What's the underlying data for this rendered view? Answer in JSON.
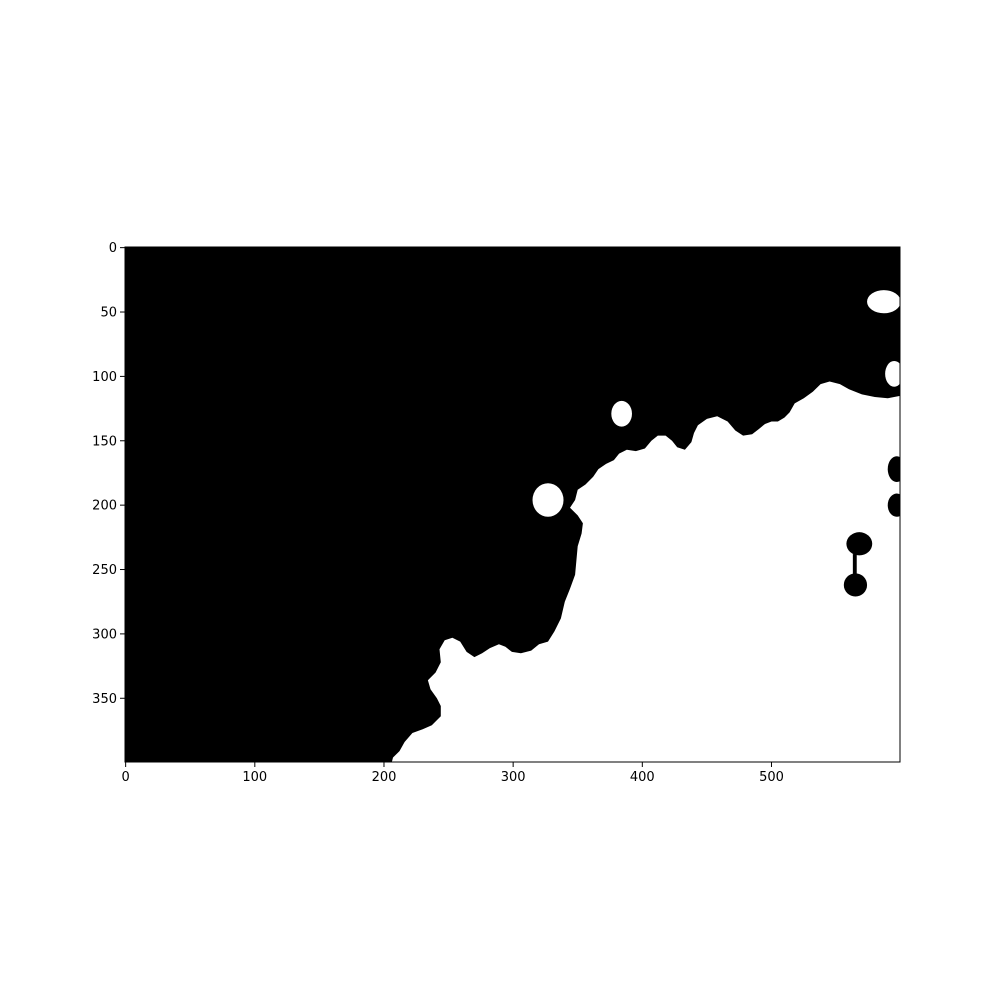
{
  "chart_data": {
    "type": "heatmap",
    "title": "",
    "xlabel": "",
    "ylabel": "",
    "image_width": 600,
    "image_height": 400,
    "xlim": [
      -0.5,
      599.5
    ],
    "ylim": [
      399.5,
      -0.5
    ],
    "y_axis_inverted": true,
    "colormap": "gray",
    "values": [
      0,
      1
    ],
    "colors": {
      "0": "#000000",
      "1": "#ffffff"
    },
    "grid": false,
    "legend": "none",
    "xticks": [
      0,
      100,
      200,
      300,
      400,
      500
    ],
    "xtick_labels": [
      "0",
      "100",
      "200",
      "300",
      "400",
      "500"
    ],
    "yticks": [
      0,
      50,
      100,
      150,
      200,
      250,
      300,
      350
    ],
    "ytick_labels": [
      "0",
      "50",
      "100",
      "150",
      "200",
      "250",
      "300",
      "350"
    ],
    "white_region_boundary": [
      [
        600,
        115
      ],
      [
        590,
        117
      ],
      [
        580,
        116
      ],
      [
        570,
        114
      ],
      [
        560,
        110
      ],
      [
        553,
        106
      ],
      [
        545,
        104
      ],
      [
        538,
        106
      ],
      [
        532,
        112
      ],
      [
        525,
        117
      ],
      [
        518,
        121
      ],
      [
        514,
        128
      ],
      [
        510,
        132
      ],
      [
        505,
        135
      ],
      [
        500,
        135
      ],
      [
        495,
        137
      ],
      [
        490,
        141
      ],
      [
        485,
        145
      ],
      [
        478,
        146
      ],
      [
        472,
        142
      ],
      [
        466,
        135
      ],
      [
        458,
        131
      ],
      [
        450,
        133
      ],
      [
        443,
        138
      ],
      [
        440,
        144
      ],
      [
        438,
        151
      ],
      [
        433,
        157
      ],
      [
        427,
        155
      ],
      [
        423,
        150
      ],
      [
        418,
        146
      ],
      [
        412,
        146
      ],
      [
        407,
        150
      ],
      [
        402,
        156
      ],
      [
        395,
        158
      ],
      [
        388,
        157
      ],
      [
        382,
        160
      ],
      [
        378,
        165
      ],
      [
        372,
        168
      ],
      [
        366,
        172
      ],
      [
        362,
        178
      ],
      [
        356,
        184
      ],
      [
        350,
        188
      ],
      [
        348,
        196
      ],
      [
        344,
        202
      ],
      [
        350,
        208
      ],
      [
        354,
        214
      ],
      [
        353,
        222
      ],
      [
        350,
        232
      ],
      [
        349,
        243
      ],
      [
        348,
        254
      ],
      [
        344,
        265
      ],
      [
        340,
        275
      ],
      [
        337,
        288
      ],
      [
        332,
        298
      ],
      [
        327,
        306
      ],
      [
        320,
        308
      ],
      [
        314,
        313
      ],
      [
        306,
        315
      ],
      [
        299,
        314
      ],
      [
        294,
        310
      ],
      [
        289,
        308
      ],
      [
        282,
        311
      ],
      [
        276,
        315
      ],
      [
        270,
        318
      ],
      [
        264,
        314
      ],
      [
        259,
        306
      ],
      [
        253,
        303
      ],
      [
        247,
        305
      ],
      [
        243,
        312
      ],
      [
        244,
        322
      ],
      [
        240,
        330
      ],
      [
        234,
        336
      ],
      [
        236,
        343
      ],
      [
        241,
        350
      ],
      [
        244,
        356
      ],
      [
        244,
        364
      ],
      [
        237,
        371
      ],
      [
        230,
        374
      ],
      [
        222,
        377
      ],
      [
        216,
        384
      ],
      [
        212,
        391
      ],
      [
        207,
        396
      ],
      [
        206,
        400
      ],
      [
        600,
        400
      ]
    ],
    "white_holes": [
      {
        "cx": 384,
        "cy": 129,
        "rx": 8,
        "ry": 10
      },
      {
        "cx": 327,
        "cy": 196,
        "rx": 12,
        "ry": 13
      },
      {
        "cx": 587,
        "cy": 42,
        "rx": 13,
        "ry": 9
      },
      {
        "cx": 595,
        "cy": 98,
        "rx": 7,
        "ry": 10
      }
    ],
    "black_islands": [
      {
        "cx": 568,
        "cy": 230,
        "rx": 10,
        "ry": 9
      },
      {
        "cx": 565,
        "cy": 262,
        "rx": 9,
        "ry": 9
      },
      {
        "cx": 597,
        "cy": 172,
        "rx": 7,
        "ry": 10
      },
      {
        "cx": 597,
        "cy": 200,
        "rx": 7,
        "ry": 9
      }
    ]
  }
}
